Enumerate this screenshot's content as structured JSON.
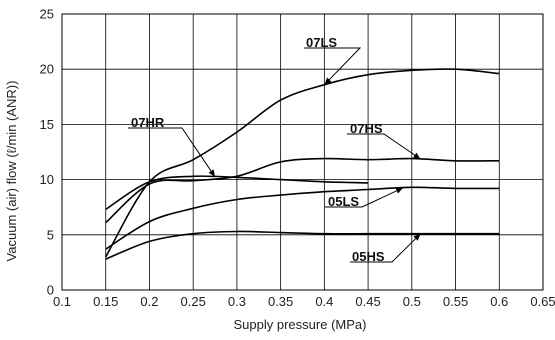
{
  "chart_data": {
    "type": "line",
    "title": "",
    "xlabel": "Supply pressure (MPa)",
    "ylabel": "Vacuum (air) flow (ℓ/min (ANR))",
    "xlim": [
      0.1,
      0.65
    ],
    "ylim": [
      0,
      25
    ],
    "x_ticks": [
      "0.1",
      "0.15",
      "0.2",
      "0.25",
      "0.3",
      "0.35",
      "0.4",
      "0.45",
      "0.5",
      "0.55",
      "0.6",
      "0.65"
    ],
    "y_ticks": [
      "0",
      "5",
      "10",
      "15",
      "20",
      "25"
    ],
    "grid": true,
    "series": [
      {
        "name": "07LS",
        "x": [
          0.15,
          0.2,
          0.25,
          0.3,
          0.35,
          0.4,
          0.45,
          0.5,
          0.55,
          0.6
        ],
        "y": [
          3.0,
          9.8,
          11.8,
          14.3,
          17.2,
          18.6,
          19.5,
          19.9,
          20.0,
          19.6
        ]
      },
      {
        "name": "07HR",
        "x": [
          0.15,
          0.2,
          0.25,
          0.3,
          0.35,
          0.4,
          0.45
        ],
        "y": [
          7.3,
          9.8,
          10.3,
          10.2,
          10.0,
          9.8,
          9.7
        ]
      },
      {
        "name": "07HS",
        "x": [
          0.15,
          0.2,
          0.25,
          0.3,
          0.35,
          0.4,
          0.45,
          0.5,
          0.55,
          0.6
        ],
        "y": [
          6.1,
          9.6,
          9.9,
          10.3,
          11.6,
          11.9,
          11.8,
          11.9,
          11.7,
          11.7
        ]
      },
      {
        "name": "05LS",
        "x": [
          0.15,
          0.2,
          0.25,
          0.3,
          0.35,
          0.4,
          0.45,
          0.5,
          0.55,
          0.6
        ],
        "y": [
          3.7,
          6.2,
          7.4,
          8.2,
          8.6,
          8.9,
          9.1,
          9.3,
          9.2,
          9.2
        ]
      },
      {
        "name": "05HS",
        "x": [
          0.15,
          0.2,
          0.25,
          0.3,
          0.35,
          0.4,
          0.45,
          0.5,
          0.55,
          0.6
        ],
        "y": [
          2.8,
          4.4,
          5.1,
          5.3,
          5.2,
          5.1,
          5.1,
          5.1,
          5.1,
          5.1
        ]
      }
    ]
  }
}
